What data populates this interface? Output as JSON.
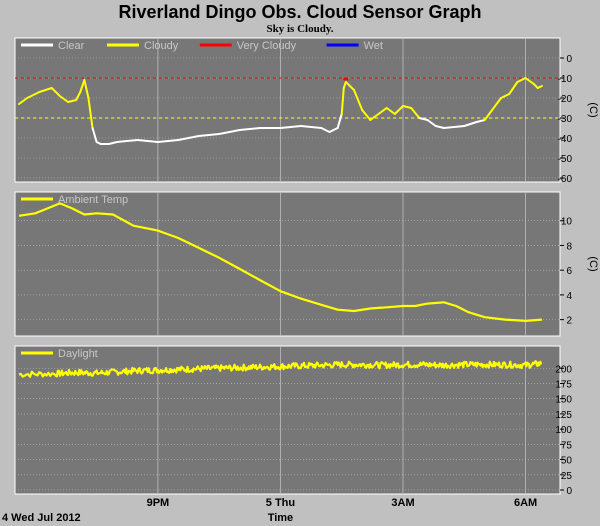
{
  "title": "Riverland Dingo Obs. Cloud Sensor Graph",
  "subtitle": "Sky is Cloudy.",
  "x_axis": {
    "label": "Time",
    "start_label": "4 Wed Jul 2012",
    "ticks": [
      {
        "hours": 3,
        "label": "9PM"
      },
      {
        "hours": 6,
        "label": "5 Thu"
      },
      {
        "hours": 9,
        "label": "3AM"
      },
      {
        "hours": 12,
        "label": "6AM"
      }
    ],
    "range_hours": [
      -0.4,
      12.5
    ]
  },
  "colors": {
    "panel_bg": "#777777",
    "page_bg": "#c0c0c0",
    "grid": "#bfbfbf",
    "clear": "#ffffff",
    "cloudy": "#ffff00",
    "very_cloudy": "#ff0000",
    "wet": "#0000ff",
    "title": "#000000"
  },
  "chart_data": [
    {
      "type": "line",
      "name": "cloud-sky-temp",
      "ylabel": "(C)",
      "ylim": [
        -60,
        8
      ],
      "yticks": [
        0,
        -10,
        -20,
        -30,
        -40,
        -50,
        -60
      ],
      "legend": [
        {
          "label": "Clear",
          "color": "#ffffff"
        },
        {
          "label": "Cloudy",
          "color": "#ffff00"
        },
        {
          "label": "Very Cloudy",
          "color": "#ff0000"
        },
        {
          "label": "Wet",
          "color": "#0000ff"
        }
      ],
      "thresholds": [
        {
          "y": -10,
          "color": "#ff0000",
          "dashed": true
        },
        {
          "y": -30,
          "color": "#ffff00",
          "dashed": true
        }
      ],
      "x": [
        -0.4,
        -0.2,
        0.1,
        0.4,
        0.6,
        0.8,
        1.0,
        1.1,
        1.2,
        1.3,
        1.4,
        1.5,
        1.6,
        1.8,
        2.0,
        2.5,
        3.0,
        3.5,
        4.0,
        4.5,
        5.0,
        5.5,
        6.0,
        6.5,
        7.0,
        7.2,
        7.4,
        7.5,
        7.55,
        7.6,
        7.7,
        7.8,
        8.0,
        8.2,
        8.4,
        8.6,
        8.8,
        9.0,
        9.2,
        9.4,
        9.6,
        9.8,
        10.0,
        10.5,
        10.8,
        11.0,
        11.4,
        11.6,
        11.8,
        12.0,
        12.2,
        12.3,
        12.4
      ],
      "y": [
        -23,
        -20,
        -17,
        -15,
        -19,
        -22,
        -21,
        -17,
        -11,
        -20,
        -35,
        -42,
        -43,
        -43,
        -42,
        -41,
        -42,
        -41,
        -39,
        -38,
        -36,
        -35,
        -35,
        -34,
        -35,
        -37,
        -35,
        -28,
        -15,
        -12,
        -14,
        -16,
        -26,
        -31,
        -28,
        -25,
        -28,
        -24,
        -25,
        -30,
        -31,
        -34,
        -35,
        -34,
        -32,
        -31,
        -20,
        -18,
        -12,
        -10,
        -13,
        -15,
        -14
      ],
      "y_very_cloudy": [
        {
          "x": 7.55,
          "y": -11
        },
        {
          "x": 7.6,
          "y": -10
        },
        {
          "x": 7.65,
          "y": -11
        }
      ]
    },
    {
      "type": "line",
      "name": "ambient-temp",
      "ylabel": "(C)",
      "ylim": [
        1,
        12
      ],
      "yticks": [
        2,
        4,
        6,
        8,
        10
      ],
      "legend": [
        {
          "label": "Ambient Temp",
          "color": "#ffff00"
        }
      ],
      "x": [
        -0.4,
        0.0,
        0.3,
        0.6,
        0.9,
        1.2,
        1.5,
        1.9,
        2.4,
        3.0,
        3.5,
        4.0,
        4.5,
        5.0,
        5.5,
        6.0,
        6.5,
        7.0,
        7.4,
        7.8,
        8.2,
        8.6,
        9.0,
        9.3,
        9.6,
        10.0,
        10.3,
        10.6,
        11.0,
        11.5,
        12.0,
        12.4
      ],
      "y": [
        10.4,
        10.6,
        11.0,
        11.4,
        11.0,
        10.5,
        10.6,
        10.5,
        9.6,
        9.2,
        8.6,
        7.8,
        7.0,
        6.1,
        5.2,
        4.3,
        3.7,
        3.2,
        2.8,
        2.7,
        2.9,
        3.0,
        3.1,
        3.1,
        3.3,
        3.4,
        3.1,
        2.6,
        2.2,
        2.0,
        1.9,
        2.0
      ]
    },
    {
      "type": "line",
      "name": "daylight",
      "ylim": [
        0,
        230
      ],
      "yticks": [
        0,
        25,
        50,
        75,
        100,
        125,
        150,
        175,
        200
      ],
      "legend": [
        {
          "label": "Daylight",
          "color": "#ffff00"
        }
      ],
      "x": [
        -0.4,
        0.5,
        1.0,
        1.5,
        2.0,
        2.5,
        3.0,
        3.5,
        4.0,
        4.5,
        5.0,
        5.5,
        6.0,
        6.5,
        7.0,
        7.5,
        8.0,
        8.5,
        9.0,
        9.5,
        10.0,
        10.5,
        11.0,
        11.5,
        12.0,
        12.4
      ],
      "y": [
        190,
        191,
        193,
        192,
        194,
        196,
        197,
        198,
        199,
        200,
        201,
        202,
        203,
        204,
        205,
        206,
        206,
        205,
        206,
        206,
        205,
        206,
        206,
        206,
        205,
        208
      ]
    }
  ]
}
